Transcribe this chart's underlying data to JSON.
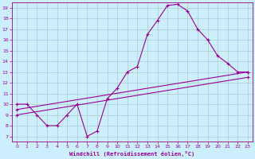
{
  "bg_color": "#cceeff",
  "line_color": "#990099",
  "grid_color": "#aacccc",
  "xlabel": "Windchill (Refroidissement éolien,°C)",
  "xlim": [
    -0.5,
    23.5
  ],
  "ylim": [
    6.5,
    19.5
  ],
  "xticks": [
    0,
    1,
    2,
    3,
    4,
    5,
    6,
    7,
    8,
    9,
    10,
    11,
    12,
    13,
    14,
    15,
    16,
    17,
    18,
    19,
    20,
    21,
    22,
    23
  ],
  "yticks": [
    7,
    8,
    9,
    10,
    11,
    12,
    13,
    14,
    15,
    16,
    17,
    18,
    19
  ],
  "line1_x": [
    0,
    1,
    2,
    3,
    4,
    5,
    6,
    7,
    8,
    9,
    10,
    11,
    12,
    13,
    14,
    15,
    16,
    17,
    18,
    19,
    20,
    21,
    22,
    23
  ],
  "line1_y": [
    10.0,
    10.0,
    9.0,
    8.0,
    8.0,
    9.0,
    10.0,
    7.0,
    7.5,
    10.5,
    11.5,
    13.0,
    13.5,
    16.5,
    17.8,
    19.2,
    19.3,
    18.7,
    17.0,
    16.0,
    14.5,
    13.8,
    13.0,
    13.0
  ],
  "line2_x": [
    0,
    23
  ],
  "line2_y": [
    9.5,
    13.0
  ],
  "line3_x": [
    0,
    23
  ],
  "line3_y": [
    9.0,
    12.5
  ],
  "marker_x1": [
    0,
    1,
    2,
    3,
    4,
    5,
    6,
    7,
    8,
    9,
    10,
    11,
    12,
    13,
    14,
    15,
    16,
    17,
    18,
    19,
    20,
    21,
    22,
    23
  ],
  "marker_y1": [
    10.0,
    10.0,
    9.0,
    8.0,
    8.0,
    9.0,
    10.0,
    7.0,
    7.5,
    10.5,
    11.5,
    13.0,
    13.5,
    16.5,
    17.8,
    19.2,
    19.3,
    18.7,
    17.0,
    16.0,
    14.5,
    13.8,
    13.0,
    13.0
  ]
}
